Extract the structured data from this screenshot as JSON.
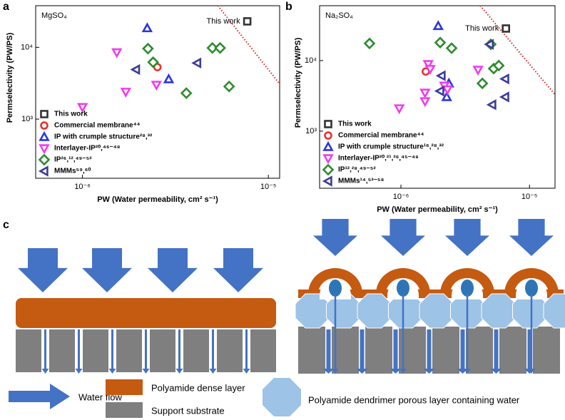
{
  "panel_labels": [
    "a",
    "b",
    "c"
  ],
  "chart_data": [
    {
      "type": "scatter",
      "title": "MgSO₄",
      "annotation": "This work",
      "x_label": "PW (Water permeability, cm² s⁻¹)",
      "y_label": "Permselectivity (PW/PS)",
      "xscale": "log",
      "yscale": "log",
      "legend": "lower left",
      "xlim": [
        5.6e-07,
        1.15e-05
      ],
      "ylim": [
        150,
        38000
      ],
      "xticks": [
        {
          "value": 1e-06,
          "label": "10⁻⁶"
        },
        {
          "value": 1e-05,
          "label": "10⁻⁵"
        }
      ],
      "yticks": [
        {
          "value": 1000,
          "label": "10³"
        },
        {
          "value": 10000,
          "label": "10⁴"
        }
      ],
      "trend_line": {
        "color": "#d62728",
        "x": [
          5.35e-06,
          1.15e-05
        ],
        "y": [
          38000,
          3100
        ]
      },
      "series": [
        {
          "name": "This work",
          "color": "#333333",
          "marker": "square",
          "x": [
            7.7e-06
          ],
          "y": [
            23000
          ]
        },
        {
          "name": "Commercial membrane⁴⁴",
          "color": "#e8322b",
          "marker": "circle",
          "x": [
            2.53e-06
          ],
          "y": [
            5300
          ]
        },
        {
          "name": "IP with crumple structure²⁸,³²",
          "color": "#2b35e0",
          "marker": "triangle-up",
          "x": [
            2.23e-06,
            2.91e-06
          ],
          "y": [
            18500,
            3600
          ]
        },
        {
          "name": "Interlayer-IP²⁰,⁴⁶⁻⁴⁸",
          "color": "#f03cf0",
          "marker": "triangle-down",
          "x": [
            1e-06,
            1.53e-06,
            1.71e-06,
            2.5e-06
          ],
          "y": [
            1470,
            8500,
            2400,
            3000
          ]
        },
        {
          "name": "IP²⁶,¹²,⁴⁹⁻⁵²",
          "color": "#2e8b2e",
          "marker": "diamond",
          "x": [
            2.25e-06,
            2.4e-06,
            3.62e-06,
            5e-06,
            5.5e-06,
            6.15e-06
          ],
          "y": [
            9600,
            6200,
            2300,
            9800,
            9800,
            2850
          ]
        },
        {
          "name": "MMMs⁵⁹,⁶⁰",
          "color": "#3c3c9a",
          "marker": "triangle-left",
          "x": [
            1.94e-06,
            4.14e-06
          ],
          "y": [
            4900,
            6050
          ]
        }
      ]
    },
    {
      "type": "scatter",
      "title": "Na₂SO₄",
      "annotation": "This work",
      "x_label": "PW (Water permeability, cm² s⁻¹)",
      "y_label": "Permselectivity (PW/PS)",
      "xscale": "log",
      "yscale": "log",
      "legend": "lower left",
      "xlim": [
        2.33e-07,
        1.58e-05
      ],
      "ylim": [
        155,
        60000
      ],
      "xticks": [
        {
          "value": 1e-06,
          "label": "10⁻⁶"
        },
        {
          "value": 1e-05,
          "label": "10⁻⁵"
        }
      ],
      "yticks": [
        {
          "value": 1000,
          "label": "10³"
        },
        {
          "value": 10000,
          "label": "10⁴"
        }
      ],
      "trend_line": {
        "color": "#d62728",
        "x": [
          4.14e-06,
          1.58e-05
        ],
        "y": [
          60000,
          3300
        ]
      },
      "series": [
        {
          "name": "This work",
          "color": "#333333",
          "marker": "square",
          "x": [
            6.56e-06
          ],
          "y": [
            28500
          ]
        },
        {
          "name": "Commercial membrane⁴⁴",
          "color": "#e8322b",
          "marker": "circle",
          "x": [
            1.56e-06
          ],
          "y": [
            7000
          ]
        },
        {
          "name": "IP with crumple structure¹⁶,²⁸,³²",
          "color": "#2b35e0",
          "marker": "triangle-up",
          "x": [
            1.95e-06,
            2.36e-06,
            2.27e-06
          ],
          "y": [
            31000,
            4750,
            3050
          ]
        },
        {
          "name": "Interlayer-IP²⁰,²¹,²⁶,⁴⁵⁻⁴⁸",
          "color": "#f03cf0",
          "marker": "triangle-down",
          "x": [
            9.7e-07,
            1.54e-06,
            1.54e-06,
            1.63e-06,
            1.69e-06,
            2.18e-06,
            2.3e-06,
            3.98e-06
          ],
          "y": [
            2100,
            2650,
            3500,
            8900,
            7600,
            4400,
            3900,
            7400
          ]
        },
        {
          "name": "IP¹²,²⁸,⁴⁹⁻⁵²",
          "color": "#2e8b2e",
          "marker": "diamond",
          "x": [
            5.7e-07,
            2.02e-06,
            2.48e-06,
            4.3e-06,
            5.27e-06,
            5.77e-06,
            5e-06
          ],
          "y": [
            17500,
            18000,
            15000,
            4750,
            7700,
            8500,
            17000
          ]
        },
        {
          "name": "MMMs¹⁴,⁵³⁻⁵⁸",
          "color": "#3c3c9a",
          "marker": "triangle-left",
          "x": [
            2.07e-06,
            4.9e-06,
            6.47e-06,
            6.47e-06,
            5.13e-06,
            2.02e-06
          ],
          "y": [
            6100,
            17000,
            5500,
            3050,
            2370,
            3700
          ]
        }
      ]
    }
  ],
  "diagram": {
    "legend": [
      "Water flow",
      "Polyamide dense layer",
      "Support substrate",
      "Polyamide dendrimer porous layer containing water"
    ]
  }
}
